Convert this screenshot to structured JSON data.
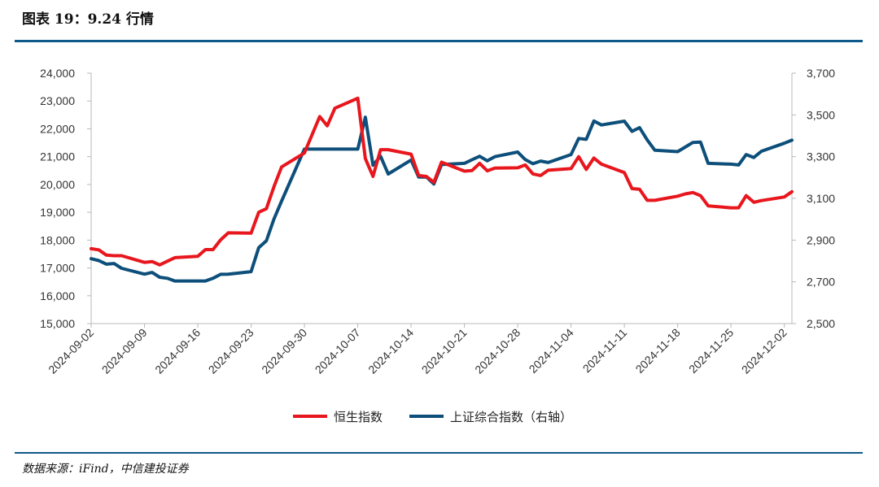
{
  "figure_title": "图表 19：9.24 行情",
  "source_note": "数据来源：iFind，中信建投证券",
  "colors": {
    "hsi": "#e8161d",
    "sse": "#0d4f7a",
    "rule": "#0d5a8a"
  },
  "chart_data": {
    "type": "line",
    "title": "",
    "grid": false,
    "legend_position": "bottom-center",
    "left_axis": {
      "min": 15000,
      "max": 24000,
      "ticks": [
        "15,000",
        "16,000",
        "17,000",
        "18,000",
        "19,000",
        "20,000",
        "21,000",
        "22,000",
        "23,000",
        "24,000"
      ]
    },
    "right_axis": {
      "min": 2500,
      "max": 3700,
      "ticks": [
        "2,500",
        "2,700",
        "2,900",
        "3,100",
        "3,300",
        "3,500",
        "3,700"
      ]
    },
    "x_ticks": [
      "2024-09-02",
      "2024-09-09",
      "2024-09-16",
      "2024-09-23",
      "2024-09-30",
      "2024-10-07",
      "2024-10-14",
      "2024-10-21",
      "2024-10-28",
      "2024-11-04",
      "2024-11-11",
      "2024-11-18",
      "2024-11-25",
      "2024-12-02"
    ],
    "series": [
      {
        "name": "恒生指数",
        "axis": "left",
        "points": [
          [
            "2024-09-02",
            17690
          ],
          [
            "2024-09-03",
            17650
          ],
          [
            "2024-09-04",
            17460
          ],
          [
            "2024-09-05",
            17440
          ],
          [
            "2024-09-06",
            17440
          ],
          [
            "2024-09-09",
            17200
          ],
          [
            "2024-09-10",
            17230
          ],
          [
            "2024-09-11",
            17110
          ],
          [
            "2024-09-12",
            17240
          ],
          [
            "2024-09-13",
            17370
          ],
          [
            "2024-09-16",
            17420
          ],
          [
            "2024-09-17",
            17660
          ],
          [
            "2024-09-18",
            17660
          ],
          [
            "2024-09-19",
            18010
          ],
          [
            "2024-09-20",
            18260
          ],
          [
            "2024-09-23",
            18250
          ],
          [
            "2024-09-24",
            19000
          ],
          [
            "2024-09-25",
            19130
          ],
          [
            "2024-09-26",
            19920
          ],
          [
            "2024-09-27",
            20630
          ],
          [
            "2024-09-30",
            21130
          ],
          [
            "2024-10-02",
            22440
          ],
          [
            "2024-10-03",
            22110
          ],
          [
            "2024-10-04",
            22740
          ],
          [
            "2024-10-07",
            23100
          ],
          [
            "2024-10-08",
            20930
          ],
          [
            "2024-10-09",
            20290
          ],
          [
            "2024-10-10",
            21250
          ],
          [
            "2024-10-11",
            21250
          ],
          [
            "2024-10-14",
            21090
          ],
          [
            "2024-10-15",
            20320
          ],
          [
            "2024-10-16",
            20290
          ],
          [
            "2024-10-17",
            20080
          ],
          [
            "2024-10-18",
            20800
          ],
          [
            "2024-10-21",
            20480
          ],
          [
            "2024-10-22",
            20500
          ],
          [
            "2024-10-23",
            20760
          ],
          [
            "2024-10-24",
            20490
          ],
          [
            "2024-10-25",
            20590
          ],
          [
            "2024-10-28",
            20600
          ],
          [
            "2024-10-29",
            20700
          ],
          [
            "2024-10-30",
            20380
          ],
          [
            "2024-10-31",
            20320
          ],
          [
            "2024-11-01",
            20510
          ],
          [
            "2024-11-04",
            20570
          ],
          [
            "2024-11-05",
            21000
          ],
          [
            "2024-11-06",
            20540
          ],
          [
            "2024-11-07",
            20950
          ],
          [
            "2024-11-08",
            20730
          ],
          [
            "2024-11-11",
            20430
          ],
          [
            "2024-11-12",
            19850
          ],
          [
            "2024-11-13",
            19830
          ],
          [
            "2024-11-14",
            19430
          ],
          [
            "2024-11-15",
            19430
          ],
          [
            "2024-11-18",
            19580
          ],
          [
            "2024-11-19",
            19660
          ],
          [
            "2024-11-20",
            19710
          ],
          [
            "2024-11-21",
            19600
          ],
          [
            "2024-11-22",
            19230
          ],
          [
            "2024-11-25",
            19160
          ],
          [
            "2024-11-26",
            19160
          ],
          [
            "2024-11-27",
            19600
          ],
          [
            "2024-11-28",
            19360
          ],
          [
            "2024-11-29",
            19420
          ],
          [
            "2024-12-02",
            19550
          ],
          [
            "2024-12-03",
            19740
          ]
        ]
      },
      {
        "name": "上证综合指数（右轴）",
        "axis": "right",
        "points": [
          [
            "2024-09-02",
            2811
          ],
          [
            "2024-09-03",
            2802
          ],
          [
            "2024-09-04",
            2785
          ],
          [
            "2024-09-05",
            2788
          ],
          [
            "2024-09-06",
            2765
          ],
          [
            "2024-09-09",
            2737
          ],
          [
            "2024-09-10",
            2745
          ],
          [
            "2024-09-11",
            2722
          ],
          [
            "2024-09-12",
            2717
          ],
          [
            "2024-09-13",
            2704
          ],
          [
            "2024-09-16",
            2704
          ],
          [
            "2024-09-17",
            2704
          ],
          [
            "2024-09-18",
            2717
          ],
          [
            "2024-09-19",
            2736
          ],
          [
            "2024-09-20",
            2737
          ],
          [
            "2024-09-23",
            2749
          ],
          [
            "2024-09-24",
            2864
          ],
          [
            "2024-09-25",
            2897
          ],
          [
            "2024-09-26",
            3001
          ],
          [
            "2024-09-27",
            3087
          ],
          [
            "2024-09-30",
            3336
          ],
          [
            "2024-10-02",
            3336
          ],
          [
            "2024-10-03",
            3336
          ],
          [
            "2024-10-04",
            3336
          ],
          [
            "2024-10-07",
            3336
          ],
          [
            "2024-10-08",
            3489
          ],
          [
            "2024-10-09",
            3259
          ],
          [
            "2024-10-10",
            3302
          ],
          [
            "2024-10-11",
            3217
          ],
          [
            "2024-10-14",
            3284
          ],
          [
            "2024-10-15",
            3202
          ],
          [
            "2024-10-16",
            3203
          ],
          [
            "2024-10-17",
            3169
          ],
          [
            "2024-10-18",
            3262
          ],
          [
            "2024-10-21",
            3268
          ],
          [
            "2024-10-22",
            3285
          ],
          [
            "2024-10-23",
            3302
          ],
          [
            "2024-10-24",
            3280
          ],
          [
            "2024-10-25",
            3300
          ],
          [
            "2024-10-28",
            3322
          ],
          [
            "2024-10-29",
            3286
          ],
          [
            "2024-10-30",
            3266
          ],
          [
            "2024-10-31",
            3279
          ],
          [
            "2024-11-01",
            3272
          ],
          [
            "2024-11-04",
            3310
          ],
          [
            "2024-11-05",
            3387
          ],
          [
            "2024-11-06",
            3383
          ],
          [
            "2024-11-07",
            3471
          ],
          [
            "2024-11-08",
            3452
          ],
          [
            "2024-11-11",
            3470
          ],
          [
            "2024-11-12",
            3421
          ],
          [
            "2024-11-13",
            3439
          ],
          [
            "2024-11-14",
            3380
          ],
          [
            "2024-11-15",
            3331
          ],
          [
            "2024-11-18",
            3324
          ],
          [
            "2024-11-19",
            3346
          ],
          [
            "2024-11-20",
            3368
          ],
          [
            "2024-11-21",
            3370
          ],
          [
            "2024-11-22",
            3268
          ],
          [
            "2024-11-25",
            3264
          ],
          [
            "2024-11-26",
            3260
          ],
          [
            "2024-11-27",
            3310
          ],
          [
            "2024-11-28",
            3296
          ],
          [
            "2024-11-29",
            3326
          ],
          [
            "2024-12-02",
            3364
          ],
          [
            "2024-12-03",
            3379
          ]
        ]
      }
    ]
  }
}
